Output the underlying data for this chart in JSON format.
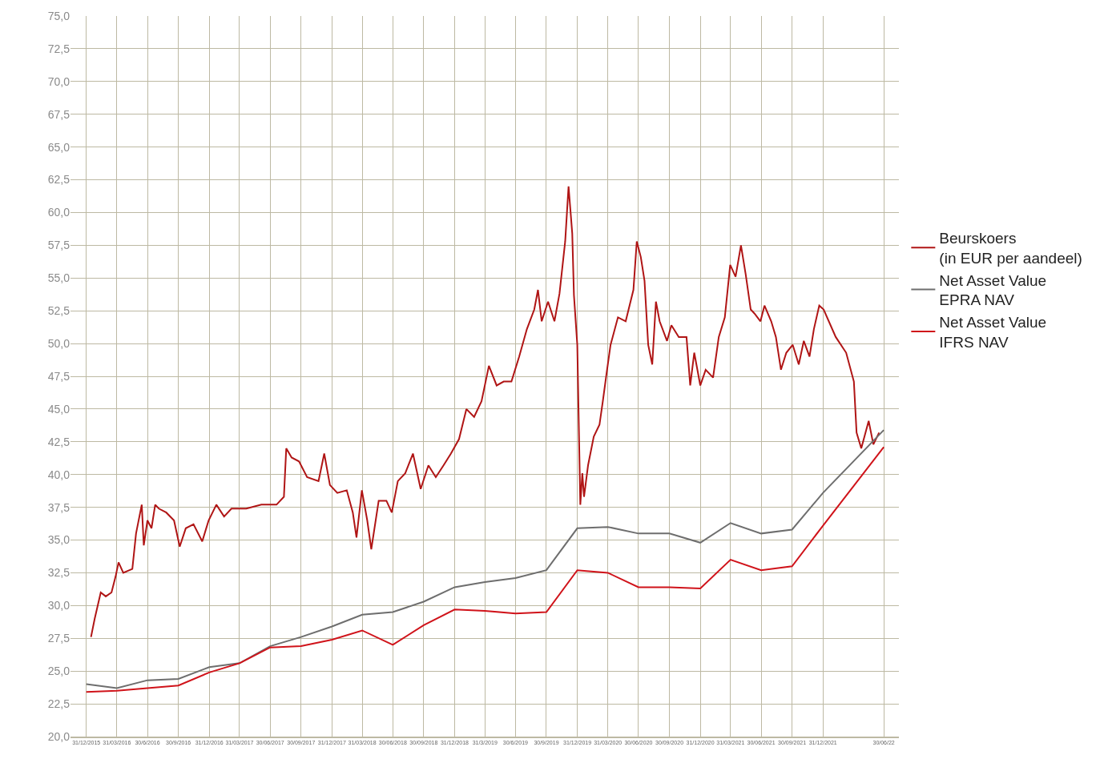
{
  "chart_data": {
    "type": "line",
    "x": [
      "2015-12-31",
      "2016-03-31",
      "2016-06-30",
      "2016-09-30",
      "2016-12-31",
      "2017-03-31",
      "2017-06-30",
      "2017-09-30",
      "2017-12-31",
      "2018-03-31",
      "2018-06-30",
      "2018-09-30",
      "2018-12-31",
      "2019-03-31",
      "2019-06-30",
      "2019-09-30",
      "2019-12-31",
      "2020-03-31",
      "2020-06-30",
      "2020-09-30",
      "2020-12-31",
      "2021-03-31",
      "2021-06-30",
      "2021-09-30",
      "2021-12-31",
      "2022-06-30"
    ],
    "xlim": [
      "2015-11-14",
      "2022-08-14"
    ],
    "xticks": [
      {
        "value": "2015-12-31",
        "label": "31/12/2015"
      },
      {
        "value": "2016-03-31",
        "label": "31/03/2016"
      },
      {
        "value": "2016-06-30",
        "label": "30/6/2016"
      },
      {
        "value": "2016-09-30",
        "label": "30/9/2016"
      },
      {
        "value": "2016-12-31",
        "label": "31/12/2016"
      },
      {
        "value": "2017-03-31",
        "label": "31/03/2017"
      },
      {
        "value": "2017-06-30",
        "label": "30/06/2017"
      },
      {
        "value": "2017-09-30",
        "label": "30/09/2017"
      },
      {
        "value": "2017-12-31",
        "label": "31/12/2017"
      },
      {
        "value": "2018-03-31",
        "label": "31/03/2018"
      },
      {
        "value": "2018-06-30",
        "label": "30/06/2018"
      },
      {
        "value": "2018-09-30",
        "label": "30/09/2018"
      },
      {
        "value": "2018-12-31",
        "label": "31/12/2018"
      },
      {
        "value": "2019-03-31",
        "label": "31/3/2019"
      },
      {
        "value": "2019-06-30",
        "label": "30/6/2019"
      },
      {
        "value": "2019-09-30",
        "label": "30/9/2019"
      },
      {
        "value": "2019-12-31",
        "label": "31/12/2019"
      },
      {
        "value": "2020-03-31",
        "label": "31/03/2020"
      },
      {
        "value": "2020-06-30",
        "label": "30/06/2020"
      },
      {
        "value": "2020-09-30",
        "label": "30/09/2020"
      },
      {
        "value": "2020-12-31",
        "label": "31/12/2020"
      },
      {
        "value": "2021-03-31",
        "label": "31/03/2021"
      },
      {
        "value": "2021-06-30",
        "label": "30/06/2021"
      },
      {
        "value": "2021-09-30",
        "label": "30/09/2021"
      },
      {
        "value": "2021-12-31",
        "label": "31/12/2021"
      },
      {
        "value": "2022-06-30",
        "label": "30/06/22"
      }
    ],
    "ylim": [
      20,
      75
    ],
    "yticks": [
      {
        "value": 20,
        "label": "20,0"
      },
      {
        "value": 22.5,
        "label": "22,5"
      },
      {
        "value": 25,
        "label": "25,0"
      },
      {
        "value": 27.5,
        "label": "27,5"
      },
      {
        "value": 30,
        "label": "30,0"
      },
      {
        "value": 32.5,
        "label": "32,5"
      },
      {
        "value": 35,
        "label": "35,0"
      },
      {
        "value": 37.5,
        "label": "37,5"
      },
      {
        "value": 40,
        "label": "40,0"
      },
      {
        "value": 42.5,
        "label": "42,5"
      },
      {
        "value": 45,
        "label": "45,0"
      },
      {
        "value": 47.5,
        "label": "47,5"
      },
      {
        "value": 50,
        "label": "50,0"
      },
      {
        "value": 52.5,
        "label": "52,5"
      },
      {
        "value": 55,
        "label": "55,0"
      },
      {
        "value": 57.5,
        "label": "57,5"
      },
      {
        "value": 60,
        "label": "60,0"
      },
      {
        "value": 62.5,
        "label": "62,5"
      },
      {
        "value": 65,
        "label": "65,0"
      },
      {
        "value": 67.5,
        "label": "67,5"
      },
      {
        "value": 70,
        "label": "70,0"
      },
      {
        "value": 72.5,
        "label": "72,5"
      },
      {
        "value": 75,
        "label": "75,0"
      }
    ],
    "grid": true,
    "legend": "right",
    "series": [
      {
        "name": "Beurskoers\n(in EUR per aandeel)",
        "color": "#b01515",
        "x": [
          "2016-01-14",
          "2016-01-25",
          "2016-02-12",
          "2016-02-27",
          "2016-03-15",
          "2016-03-27",
          "2016-04-05",
          "2016-04-19",
          "2016-05-16",
          "2016-05-27",
          "2016-06-13",
          "2016-06-19",
          "2016-06-30",
          "2016-07-12",
          "2016-07-23",
          "2016-08-03",
          "2016-08-25",
          "2016-09-17",
          "2016-10-04",
          "2016-10-22",
          "2016-11-14",
          "2016-12-10",
          "2016-12-29",
          "2017-01-21",
          "2017-02-13",
          "2017-03-07",
          "2017-04-20",
          "2017-06-04",
          "2017-07-19",
          "2017-08-10",
          "2017-08-17",
          "2017-09-02",
          "2017-09-24",
          "2017-10-18",
          "2017-11-21",
          "2017-12-08",
          "2017-12-25",
          "2018-01-16",
          "2018-02-13",
          "2018-03-03",
          "2018-03-14",
          "2018-03-30",
          "2018-04-15",
          "2018-04-27",
          "2018-05-19",
          "2018-06-11",
          "2018-06-27",
          "2018-07-15",
          "2018-08-06",
          "2018-08-29",
          "2018-09-21",
          "2018-10-14",
          "2018-11-05",
          "2018-11-28",
          "2018-12-20",
          "2019-01-13",
          "2019-02-04",
          "2019-02-27",
          "2019-03-21",
          "2019-04-12",
          "2019-05-05",
          "2019-05-26",
          "2019-06-18",
          "2019-07-11",
          "2019-08-03",
          "2019-08-25",
          "2019-09-05",
          "2019-09-16",
          "2019-10-05",
          "2019-10-24",
          "2019-11-08",
          "2019-11-25",
          "2019-12-05",
          "2019-12-16",
          "2019-12-21",
          "2019-12-31",
          "2020-01-09",
          "2020-01-15",
          "2020-01-20",
          "2020-02-01",
          "2020-02-18",
          "2020-03-06",
          "2020-03-16",
          "2020-03-27",
          "2020-04-08",
          "2020-04-30",
          "2020-05-23",
          "2020-06-15",
          "2020-06-25",
          "2020-07-07",
          "2020-07-18",
          "2020-07-29",
          "2020-08-10",
          "2020-08-21",
          "2020-09-01",
          "2020-09-23",
          "2020-10-06",
          "2020-10-28",
          "2020-11-20",
          "2020-12-01",
          "2020-12-13",
          "2020-12-31",
          "2021-01-16",
          "2021-02-07",
          "2021-02-24",
          "2021-03-14",
          "2021-03-30",
          "2021-04-15",
          "2021-05-01",
          "2021-05-15",
          "2021-05-30",
          "2021-06-10",
          "2021-06-28",
          "2021-07-10",
          "2021-07-30",
          "2021-08-13",
          "2021-08-28",
          "2021-09-13",
          "2021-10-02",
          "2021-10-20",
          "2021-11-04",
          "2021-11-21",
          "2021-12-04",
          "2021-12-20",
          "2022-01-02",
          "2022-02-07",
          "2022-03-10",
          "2022-04-02",
          "2022-04-10",
          "2022-04-24",
          "2022-05-16",
          "2022-05-30",
          "2022-06-16"
        ],
        "values": [
          27.6,
          29.0,
          31.0,
          30.7,
          31.0,
          32.2,
          33.3,
          32.5,
          32.8,
          35.5,
          37.7,
          34.6,
          36.5,
          35.9,
          37.7,
          37.4,
          37.1,
          36.5,
          34.5,
          35.9,
          36.2,
          34.9,
          36.5,
          37.7,
          36.8,
          37.4,
          37.4,
          37.7,
          37.7,
          38.3,
          42.0,
          41.3,
          41.0,
          39.8,
          39.5,
          41.6,
          39.2,
          38.6,
          38.8,
          37.1,
          35.2,
          38.8,
          36.5,
          34.3,
          38.0,
          38.0,
          37.1,
          39.5,
          40.1,
          41.6,
          38.9,
          40.7,
          39.8,
          40.7,
          41.6,
          42.7,
          45.0,
          44.4,
          45.6,
          48.3,
          46.8,
          47.1,
          47.1,
          49.0,
          51.1,
          52.6,
          54.1,
          51.7,
          53.2,
          51.7,
          53.8,
          57.8,
          62.0,
          58.4,
          53.7,
          49.9,
          37.7,
          40.1,
          38.3,
          40.7,
          42.9,
          43.8,
          45.6,
          47.7,
          49.9,
          52.0,
          51.7,
          54.1,
          57.8,
          56.6,
          54.8,
          49.9,
          48.4,
          53.2,
          51.7,
          50.2,
          51.4,
          50.5,
          50.5,
          46.8,
          49.3,
          46.8,
          48.0,
          47.4,
          50.5,
          52.0,
          56.0,
          55.1,
          57.5,
          55.3,
          52.6,
          52.3,
          51.7,
          52.9,
          51.7,
          50.5,
          48.0,
          49.3,
          49.9,
          48.4,
          50.2,
          49.0,
          51.1,
          52.9,
          52.6,
          50.5,
          49.3,
          47.1,
          43.2,
          42.0,
          44.1,
          42.3,
          43.2
        ]
      },
      {
        "name": "Net Asset Value\nEPRA NAV",
        "color": "#6e6e6e",
        "values": [
          24.0,
          23.7,
          24.3,
          24.4,
          25.3,
          25.6,
          26.9,
          27.6,
          28.4,
          29.3,
          29.5,
          30.3,
          31.4,
          31.8,
          32.1,
          32.7,
          35.9,
          36.0,
          35.5,
          35.5,
          34.8,
          36.3,
          35.5,
          35.8,
          38.6,
          43.4
        ]
      },
      {
        "name": "Net Asset Value\nIFRS NAV",
        "color": "#d0131a",
        "values": [
          23.4,
          23.5,
          23.7,
          23.9,
          24.9,
          25.6,
          26.8,
          26.9,
          27.4,
          28.1,
          27.0,
          28.5,
          29.7,
          29.6,
          29.4,
          29.5,
          32.7,
          32.5,
          31.4,
          31.4,
          31.3,
          33.5,
          32.7,
          33.0,
          36.1,
          42.1
        ]
      }
    ]
  }
}
